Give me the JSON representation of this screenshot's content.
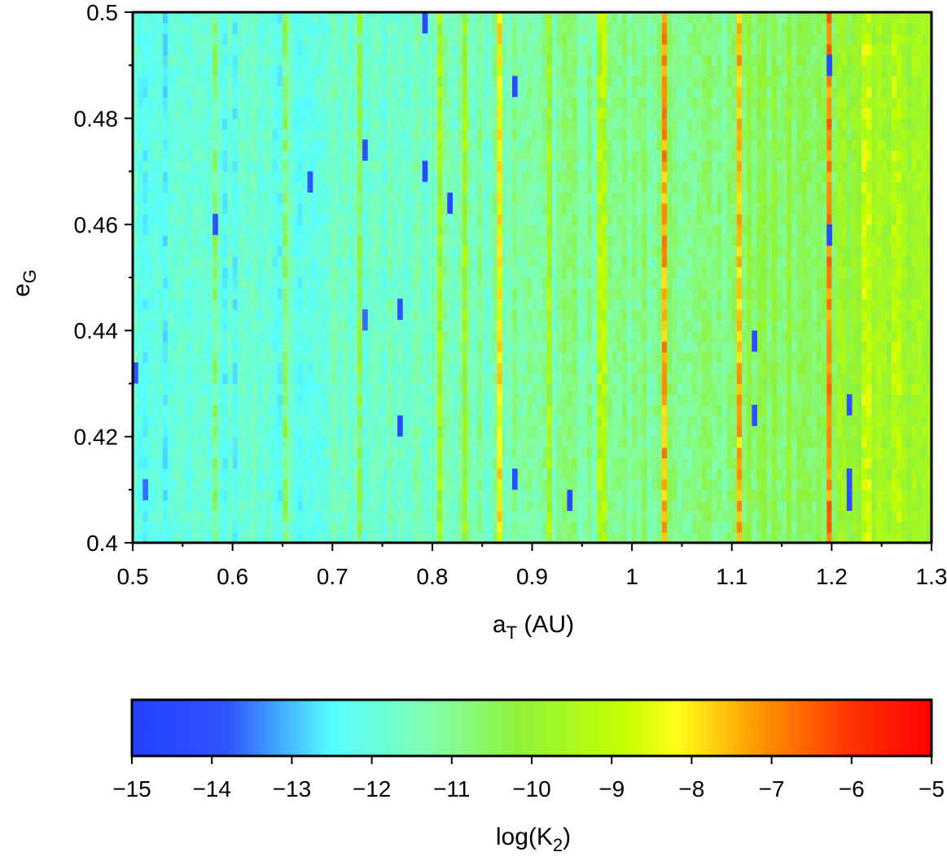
{
  "chart_data": {
    "type": "heatmap",
    "xlabel": {
      "main": "a",
      "sub": "T",
      "suffix": " (AU)"
    },
    "ylabel": {
      "main": "e",
      "sub": "G"
    },
    "xlim": [
      0.5,
      1.3
    ],
    "ylim": [
      0.4,
      0.5
    ],
    "x_ticks": [
      "0.5",
      "0.6",
      "0.7",
      "0.8",
      "0.9",
      "1",
      "1.1",
      "1.2",
      "1.3"
    ],
    "x_tick_values": [
      0.5,
      0.6,
      0.7,
      0.8,
      0.9,
      1.0,
      1.1,
      1.2,
      1.3
    ],
    "y_ticks": [
      "0.4",
      "0.42",
      "0.44",
      "0.46",
      "0.48",
      "0.5"
    ],
    "y_tick_values": [
      0.4,
      0.42,
      0.44,
      0.46,
      0.48,
      0.5
    ],
    "grid": {
      "nx": 160,
      "ny": 50
    },
    "value_range": [
      -15,
      -5
    ],
    "baseline_profile": [
      {
        "x": 0.5,
        "v": -12.2
      },
      {
        "x": 0.6,
        "v": -12.1
      },
      {
        "x": 0.7,
        "v": -11.8
      },
      {
        "x": 0.8,
        "v": -11.5
      },
      {
        "x": 0.9,
        "v": -11.2
      },
      {
        "x": 1.0,
        "v": -11.0
      },
      {
        "x": 1.1,
        "v": -10.8
      },
      {
        "x": 1.2,
        "v": -10.2
      },
      {
        "x": 1.3,
        "v": -9.6
      }
    ],
    "resonance_bands": [
      {
        "x": 0.582,
        "v": -10.9
      },
      {
        "x": 0.652,
        "v": -10.8
      },
      {
        "x": 0.727,
        "v": -10.4
      },
      {
        "x": 0.808,
        "v": -9.6
      },
      {
        "x": 0.832,
        "v": -9.9
      },
      {
        "x": 0.868,
        "v": -8.2
      },
      {
        "x": 0.917,
        "v": -9.7
      },
      {
        "x": 0.97,
        "v": -9.3
      },
      {
        "x": 1.033,
        "v": -7.3
      },
      {
        "x": 1.108,
        "v": -7.6
      },
      {
        "x": 1.198,
        "v": -7.0
      },
      {
        "x": 1.235,
        "v": -9.0
      },
      {
        "x": 1.265,
        "v": -9.2
      }
    ],
    "low_value_spots": [
      {
        "x": 0.792,
        "y": 0.499,
        "v": -14.4
      },
      {
        "x": 0.882,
        "y": 0.488,
        "v": -14.2
      },
      {
        "x": 0.733,
        "y": 0.476,
        "v": -14.0
      },
      {
        "x": 0.792,
        "y": 0.471,
        "v": -14.3
      },
      {
        "x": 0.678,
        "y": 0.469,
        "v": -13.8
      },
      {
        "x": 0.818,
        "y": 0.464,
        "v": -14.5
      },
      {
        "x": 0.583,
        "y": 0.461,
        "v": -13.9
      },
      {
        "x": 0.768,
        "y": 0.446,
        "v": -13.9
      },
      {
        "x": 0.733,
        "y": 0.443,
        "v": -13.6
      },
      {
        "x": 1.123,
        "y": 0.439,
        "v": -14.1
      },
      {
        "x": 0.502,
        "y": 0.433,
        "v": -13.9
      },
      {
        "x": 1.218,
        "y": 0.428,
        "v": -14.0
      },
      {
        "x": 1.123,
        "y": 0.426,
        "v": -14.0
      },
      {
        "x": 0.768,
        "y": 0.424,
        "v": -14.3
      },
      {
        "x": 0.938,
        "y": 0.409,
        "v": -14.5
      },
      {
        "x": 0.883,
        "y": 0.414,
        "v": -14.0
      },
      {
        "x": 1.218,
        "y": 0.414,
        "v": -14.1
      },
      {
        "x": 1.218,
        "y": 0.409,
        "v": -14.2
      },
      {
        "x": 1.198,
        "y": 0.492,
        "v": -14.3
      },
      {
        "x": 1.198,
        "y": 0.459,
        "v": -14.3
      },
      {
        "x": 0.512,
        "y": 0.411,
        "v": -13.6
      }
    ],
    "colorbar": {
      "label": {
        "main": "log(K",
        "sub": "2",
        "suffix": ")"
      },
      "ticks": [
        "−15",
        "−14",
        "−13",
        "−12",
        "−11",
        "−10",
        "−9",
        "−8",
        "−7",
        "−6",
        "−5"
      ],
      "tick_values": [
        -15,
        -14,
        -13,
        -12,
        -11,
        -10,
        -9,
        -8,
        -7,
        -6,
        -5
      ],
      "stops": [
        {
          "v": -15,
          "color": "#2340ff"
        },
        {
          "v": -13.8,
          "color": "#2f55ff"
        },
        {
          "v": -12.5,
          "color": "#55ffff"
        },
        {
          "v": -11.3,
          "color": "#80ffb0"
        },
        {
          "v": -10.2,
          "color": "#8ef23a"
        },
        {
          "v": -8.8,
          "color": "#c6ff00"
        },
        {
          "v": -8.2,
          "color": "#ffff1a"
        },
        {
          "v": -7.2,
          "color": "#ff9a00"
        },
        {
          "v": -6.0,
          "color": "#ff3300"
        },
        {
          "v": -5,
          "color": "#ff0000"
        }
      ]
    }
  }
}
